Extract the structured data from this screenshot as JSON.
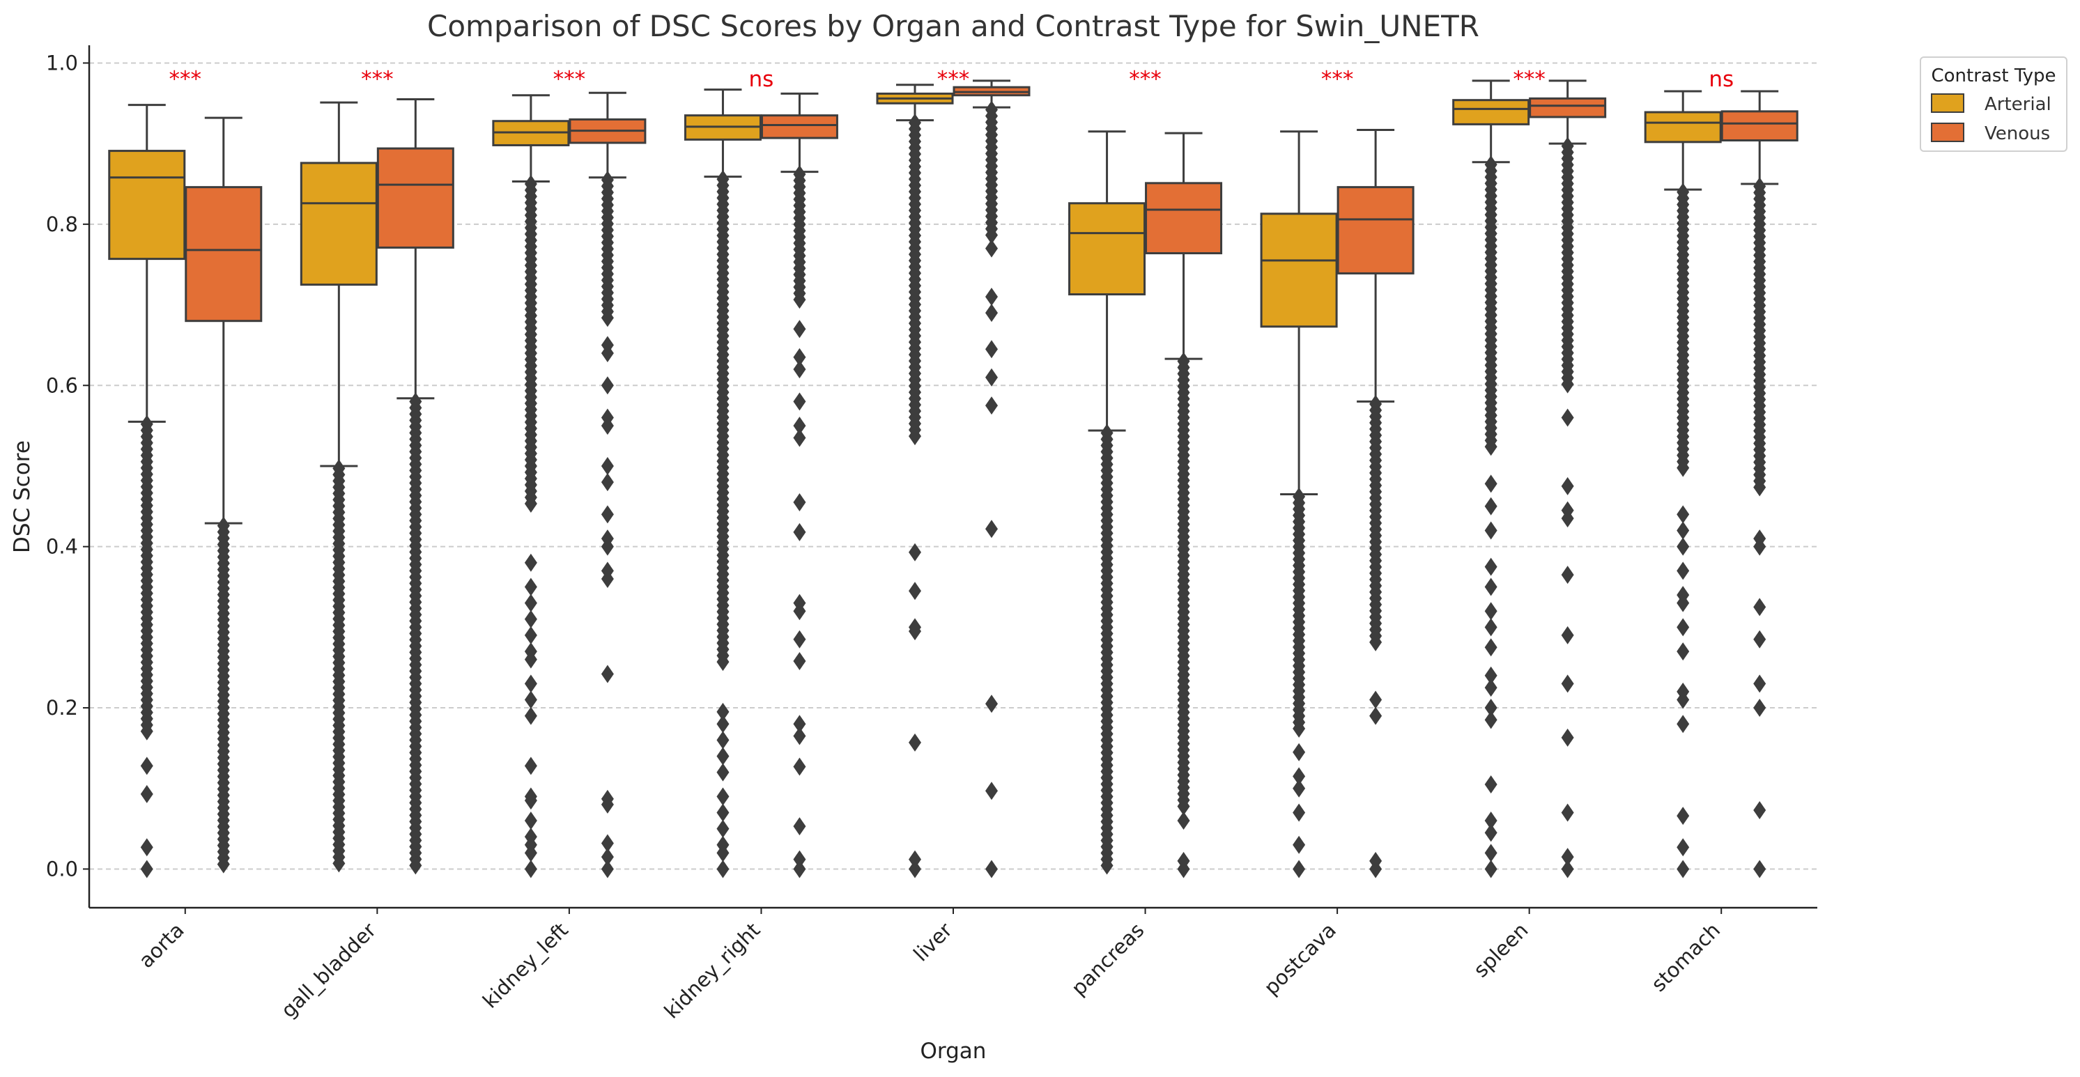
{
  "chart_data": {
    "type": "box",
    "title": "Comparison of DSC Scores by Organ and Contrast Type for Swin_UNETR",
    "xlabel": "Organ",
    "ylabel": "DSC Score",
    "ylim": [
      -0.048,
      1.022
    ],
    "yticks": [
      "0.0",
      "0.2",
      "0.4",
      "0.6",
      "0.8",
      "1.0"
    ],
    "ytick_values": [
      0.0,
      0.2,
      0.4,
      0.6,
      0.8,
      1.0
    ],
    "grid": "horizontal dashed",
    "categories": [
      "aorta",
      "gall_bladder",
      "kidney_left",
      "kidney_right",
      "liver",
      "pancreas",
      "postcava",
      "spleen",
      "stomach"
    ],
    "significance": [
      "***",
      "***",
      "***",
      "ns",
      "***",
      "***",
      "***",
      "***",
      "ns"
    ],
    "significance_color": "#e8000b",
    "legend": {
      "title": "Contrast Type",
      "position": "upper-right outside"
    },
    "series": [
      {
        "name": "Arterial",
        "color": "#e0a21e",
        "boxes": [
          {
            "whislo": 0.555,
            "q1": 0.757,
            "med": 0.858,
            "q3": 0.891,
            "whishi": 0.948,
            "outlier_range": [
              0.17,
              0.552
            ],
            "outliers": [
              0.128,
              0.093,
              0.027,
              0.0
            ]
          },
          {
            "whislo": 0.5,
            "q1": 0.725,
            "med": 0.826,
            "q3": 0.876,
            "whishi": 0.951,
            "outlier_range": [
              0.0,
              0.497
            ],
            "outliers": []
          },
          {
            "whislo": 0.853,
            "q1": 0.898,
            "med": 0.914,
            "q3": 0.928,
            "whishi": 0.96,
            "outlier_range": [
              0.45,
              0.85
            ],
            "outliers": [
              0.38,
              0.35,
              0.33,
              0.31,
              0.29,
              0.27,
              0.26,
              0.23,
              0.21,
              0.19,
              0.128,
              0.09,
              0.085,
              0.06,
              0.04,
              0.03,
              0.02,
              0.0
            ]
          },
          {
            "whislo": 0.859,
            "q1": 0.905,
            "med": 0.921,
            "q3": 0.935,
            "whishi": 0.967,
            "outlier_range": [
              0.25,
              0.856
            ],
            "outliers": [
              0.195,
              0.18,
              0.16,
              0.14,
              0.12,
              0.09,
              0.07,
              0.05,
              0.03,
              0.02,
              0.0
            ]
          },
          {
            "whislo": 0.929,
            "q1": 0.95,
            "med": 0.956,
            "q3": 0.962,
            "whishi": 0.973,
            "outlier_range": [
              0.53,
              0.926
            ],
            "outliers": [
              0.393,
              0.345,
              0.3,
              0.295,
              0.157,
              0.012,
              0.0
            ]
          },
          {
            "whislo": 0.544,
            "q1": 0.713,
            "med": 0.789,
            "q3": 0.826,
            "whishi": 0.915,
            "outlier_range": [
              0.0,
              0.541
            ],
            "outliers": []
          },
          {
            "whislo": 0.465,
            "q1": 0.673,
            "med": 0.755,
            "q3": 0.813,
            "whishi": 0.915,
            "outlier_range": [
              0.17,
              0.462
            ],
            "outliers": [
              0.145,
              0.115,
              0.1,
              0.07,
              0.03,
              0.0
            ]
          },
          {
            "whislo": 0.877,
            "q1": 0.924,
            "med": 0.943,
            "q3": 0.954,
            "whishi": 0.978,
            "outlier_range": [
              0.52,
              0.874
            ],
            "outliers": [
              0.478,
              0.45,
              0.42,
              0.375,
              0.35,
              0.32,
              0.3,
              0.275,
              0.24,
              0.225,
              0.2,
              0.185,
              0.105,
              0.06,
              0.045,
              0.02,
              0.0
            ]
          },
          {
            "whislo": 0.843,
            "q1": 0.902,
            "med": 0.926,
            "q3": 0.939,
            "whishi": 0.965,
            "outlier_range": [
              0.49,
              0.84
            ],
            "outliers": [
              0.44,
              0.42,
              0.4,
              0.37,
              0.34,
              0.33,
              0.3,
              0.27,
              0.22,
              0.21,
              0.18,
              0.066,
              0.027,
              0.0
            ]
          }
        ]
      },
      {
        "name": "Venous",
        "color": "#e36f35",
        "boxes": [
          {
            "whislo": 0.429,
            "q1": 0.68,
            "med": 0.768,
            "q3": 0.846,
            "whishi": 0.932,
            "outlier_range": [
              0.0,
              0.426
            ],
            "outliers": []
          },
          {
            "whislo": 0.584,
            "q1": 0.771,
            "med": 0.849,
            "q3": 0.894,
            "whishi": 0.955,
            "outlier_range": [
              0.0,
              0.58
            ],
            "outliers": []
          },
          {
            "whislo": 0.858,
            "q1": 0.901,
            "med": 0.916,
            "q3": 0.93,
            "whishi": 0.963,
            "outlier_range": [
              0.68,
              0.855
            ],
            "outliers": [
              0.65,
              0.64,
              0.6,
              0.56,
              0.55,
              0.5,
              0.48,
              0.44,
              0.41,
              0.4,
              0.37,
              0.36,
              0.242,
              0.087,
              0.08,
              0.032,
              0.015,
              0.0
            ]
          },
          {
            "whislo": 0.865,
            "q1": 0.907,
            "med": 0.923,
            "q3": 0.935,
            "whishi": 0.962,
            "outlier_range": [
              0.7,
              0.862
            ],
            "outliers": [
              0.67,
              0.635,
              0.62,
              0.58,
              0.55,
              0.535,
              0.455,
              0.418,
              0.33,
              0.32,
              0.285,
              0.258,
              0.18,
              0.165,
              0.127,
              0.053,
              0.012,
              0.0
            ]
          },
          {
            "whislo": 0.945,
            "q1": 0.96,
            "med": 0.964,
            "q3": 0.97,
            "whishi": 0.978,
            "outlier_range": [
              0.78,
              0.942
            ],
            "outliers": [
              0.77,
              0.71,
              0.69,
              0.645,
              0.61,
              0.575,
              0.422,
              0.205,
              0.097,
              0.0
            ]
          },
          {
            "whislo": 0.633,
            "q1": 0.764,
            "med": 0.818,
            "q3": 0.851,
            "whishi": 0.913,
            "outlier_range": [
              0.07,
              0.63
            ],
            "outliers": [
              0.06,
              0.01,
              0.0
            ]
          },
          {
            "whislo": 0.58,
            "q1": 0.739,
            "med": 0.806,
            "q3": 0.846,
            "whishi": 0.917,
            "outlier_range": [
              0.28,
              0.577
            ],
            "outliers": [
              0.21,
              0.19,
              0.01,
              0.0
            ]
          },
          {
            "whislo": 0.9,
            "q1": 0.933,
            "med": 0.947,
            "q3": 0.956,
            "whishi": 0.978,
            "outlier_range": [
              0.6,
              0.897
            ],
            "outliers": [
              0.56,
              0.475,
              0.445,
              0.435,
              0.365,
              0.29,
              0.23,
              0.163,
              0.07,
              0.015,
              0.0
            ]
          },
          {
            "whislo": 0.85,
            "q1": 0.904,
            "med": 0.925,
            "q3": 0.94,
            "whishi": 0.965,
            "outlier_range": [
              0.47,
              0.847
            ],
            "outliers": [
              0.41,
              0.4,
              0.325,
              0.285,
              0.23,
              0.2,
              0.073,
              0.0
            ]
          }
        ]
      }
    ]
  }
}
